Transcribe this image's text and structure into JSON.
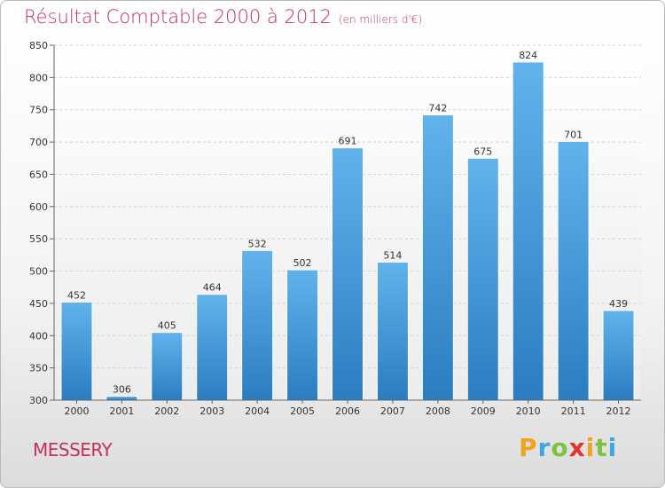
{
  "header": {
    "title": "Résultat Comptable 2000 à 2012",
    "subtitle": "(en milliers d'€)"
  },
  "footer": {
    "town": "MESSERY",
    "logo": "Proxiti"
  },
  "colors": {
    "title": "#c4315a",
    "bar_top": "#62b2ec",
    "bar_bottom": "#2a7dc0"
  },
  "chart_data": {
    "type": "bar",
    "title": "Résultat Comptable 2000 à 2012",
    "subtitle": "(en milliers d'€)",
    "xlabel": "",
    "ylabel": "",
    "categories": [
      "2000",
      "2001",
      "2002",
      "2003",
      "2004",
      "2005",
      "2006",
      "2007",
      "2008",
      "2009",
      "2010",
      "2011",
      "2012"
    ],
    "values": [
      452,
      306,
      405,
      464,
      532,
      502,
      691,
      514,
      742,
      675,
      824,
      701,
      439
    ],
    "ylim": [
      300,
      850
    ],
    "yticks": [
      300,
      350,
      400,
      450,
      500,
      550,
      600,
      650,
      700,
      750,
      800,
      850
    ],
    "grid": true,
    "legend": "none"
  }
}
